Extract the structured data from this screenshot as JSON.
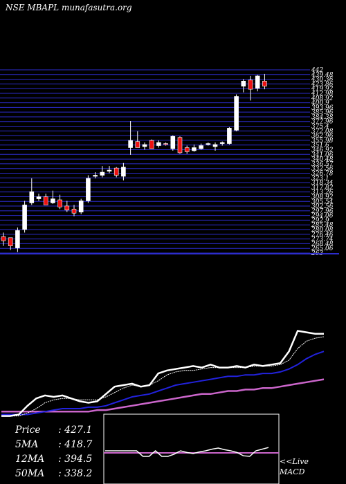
{
  "header": {
    "symbol": "NSE MBAPL",
    "site": "munafasutra.org"
  },
  "price_axis_labels": [
    "442",
    "439.48",
    "430.36",
    "423.86",
    "419.92",
    "412.98",
    "408.92",
    "400.9",
    "393.96",
    "385.96",
    "384.38",
    "377.96",
    "375.4",
    "372.08",
    "362.96",
    "355.98",
    "351.6",
    "346.92",
    "341.06",
    "340.48",
    "336.57",
    "332.56",
    "326.78",
    "323.1",
    "318.34",
    "317.82",
    "313.26",
    "308.92",
    "305.54",
    "302.56",
    "297.96",
    "294.06",
    "292.9",
    "285.48",
    "280.08",
    "276.46",
    "273.74",
    "268.48",
    "265.06",
    "263"
  ],
  "stats": {
    "price_label": "Price",
    "price_value": ": 427.1",
    "ma5_label": "5MA",
    "ma5_value": ": 418.7",
    "ma12_label": "12MA",
    "ma12_value": ": 394.5",
    "ma50_label": "50MA",
    "ma50_value": ": 338.2"
  },
  "macd_label_1": "<<Live",
  "macd_label_2": "MACD",
  "colors": {
    "up": "#ffffff",
    "down": "#ee1111",
    "grid": "#2c2ccc",
    "ma12": "#2222dd",
    "ma50": "#cc66cc",
    "price_line": "#ffffff",
    "macd_signal": "#cc66cc"
  },
  "chart_data": {
    "type": "candlestick",
    "ylim": [
      263,
      442
    ],
    "candles": [
      {
        "o": 279,
        "h": 283,
        "l": 270,
        "c": 275
      },
      {
        "o": 278,
        "h": 278,
        "l": 266,
        "c": 270
      },
      {
        "o": 268,
        "h": 288,
        "l": 264,
        "c": 285
      },
      {
        "o": 286,
        "h": 314,
        "l": 283,
        "c": 310
      },
      {
        "o": 312,
        "h": 336,
        "l": 310,
        "c": 323
      },
      {
        "o": 316,
        "h": 321,
        "l": 314,
        "c": 318
      },
      {
        "o": 318,
        "h": 321,
        "l": 310,
        "c": 310
      },
      {
        "o": 312,
        "h": 324,
        "l": 311,
        "c": 316
      },
      {
        "o": 315,
        "h": 320,
        "l": 306,
        "c": 308
      },
      {
        "o": 309,
        "h": 314,
        "l": 303,
        "c": 305
      },
      {
        "o": 306,
        "h": 310,
        "l": 299,
        "c": 302
      },
      {
        "o": 303,
        "h": 316,
        "l": 301,
        "c": 314
      },
      {
        "o": 314,
        "h": 339,
        "l": 312,
        "c": 336
      },
      {
        "o": 338,
        "h": 342,
        "l": 336,
        "c": 339
      },
      {
        "o": 339,
        "h": 348,
        "l": 337,
        "c": 342
      },
      {
        "o": 344,
        "h": 348,
        "l": 341,
        "c": 344
      },
      {
        "o": 346,
        "h": 347,
        "l": 337,
        "c": 339
      },
      {
        "o": 338,
        "h": 351,
        "l": 334,
        "c": 347
      },
      {
        "o": 366,
        "h": 392,
        "l": 359,
        "c": 373
      },
      {
        "o": 372,
        "h": 382,
        "l": 366,
        "c": 366
      },
      {
        "o": 367,
        "h": 371,
        "l": 364,
        "c": 369
      },
      {
        "o": 373,
        "h": 374,
        "l": 365,
        "c": 365
      },
      {
        "o": 368,
        "h": 373,
        "l": 366,
        "c": 371
      },
      {
        "o": 370,
        "h": 371,
        "l": 368,
        "c": 369
      },
      {
        "o": 365,
        "h": 378,
        "l": 363,
        "c": 377
      },
      {
        "o": 376,
        "h": 377,
        "l": 360,
        "c": 361
      },
      {
        "o": 366,
        "h": 368,
        "l": 360,
        "c": 362
      },
      {
        "o": 363,
        "h": 369,
        "l": 362,
        "c": 366
      },
      {
        "o": 365,
        "h": 370,
        "l": 364,
        "c": 368
      },
      {
        "o": 369,
        "h": 371,
        "l": 368,
        "c": 370
      },
      {
        "o": 367,
        "h": 371,
        "l": 363,
        "c": 369
      },
      {
        "o": 370,
        "h": 372,
        "l": 368,
        "c": 371
      },
      {
        "o": 370,
        "h": 386,
        "l": 369,
        "c": 385
      },
      {
        "o": 383,
        "h": 418,
        "l": 382,
        "c": 416
      },
      {
        "o": 426,
        "h": 433,
        "l": 420,
        "c": 431
      },
      {
        "o": 432,
        "h": 436,
        "l": 412,
        "c": 423
      },
      {
        "o": 424,
        "h": 437,
        "l": 421,
        "c": 436
      },
      {
        "o": 431,
        "h": 438,
        "l": 423,
        "c": 426
      }
    ],
    "price_line": [
      293,
      293,
      294,
      300,
      305,
      307,
      306,
      307,
      305,
      303,
      302,
      303,
      308,
      313,
      314,
      315,
      313,
      314,
      322,
      324,
      325,
      326,
      327,
      326,
      328,
      326,
      326,
      327,
      326,
      328,
      327,
      328,
      329,
      337,
      351,
      350,
      349,
      349
    ],
    "ma5": [
      293,
      293,
      293,
      295,
      298,
      302,
      304,
      305,
      305,
      304,
      304,
      304,
      306,
      309,
      312,
      314,
      313,
      314,
      317,
      321,
      323,
      324,
      324,
      325,
      326,
      326,
      326,
      326,
      326,
      327,
      327,
      327,
      328,
      331,
      339,
      344,
      346,
      347
    ],
    "ma12": [
      294,
      294,
      294,
      294,
      295,
      296,
      297,
      298,
      298,
      298,
      299,
      299,
      300,
      302,
      304,
      306,
      307,
      308,
      310,
      312,
      314,
      315,
      316,
      317,
      318,
      319,
      320,
      320,
      321,
      321,
      322,
      322,
      323,
      325,
      328,
      332,
      335,
      337
    ],
    "ma50": [
      296,
      296,
      296,
      296,
      296,
      296,
      296,
      296,
      296,
      296,
      296,
      297,
      297,
      298,
      299,
      300,
      301,
      302,
      303,
      304,
      305,
      306,
      307,
      308,
      308,
      309,
      310,
      310,
      311,
      311,
      312,
      312,
      313,
      314,
      315,
      316,
      317,
      318
    ],
    "macd_line": [
      0,
      0,
      0,
      0,
      0,
      0,
      -1,
      -1,
      0,
      -1,
      -1,
      -0.6,
      0,
      -0.3,
      -0.5,
      -0.2,
      0,
      0.3,
      0.5,
      0.2,
      0,
      -0.3,
      -0.9,
      -1,
      0,
      0.3,
      0.6
    ],
    "macd_signal": 0
  }
}
